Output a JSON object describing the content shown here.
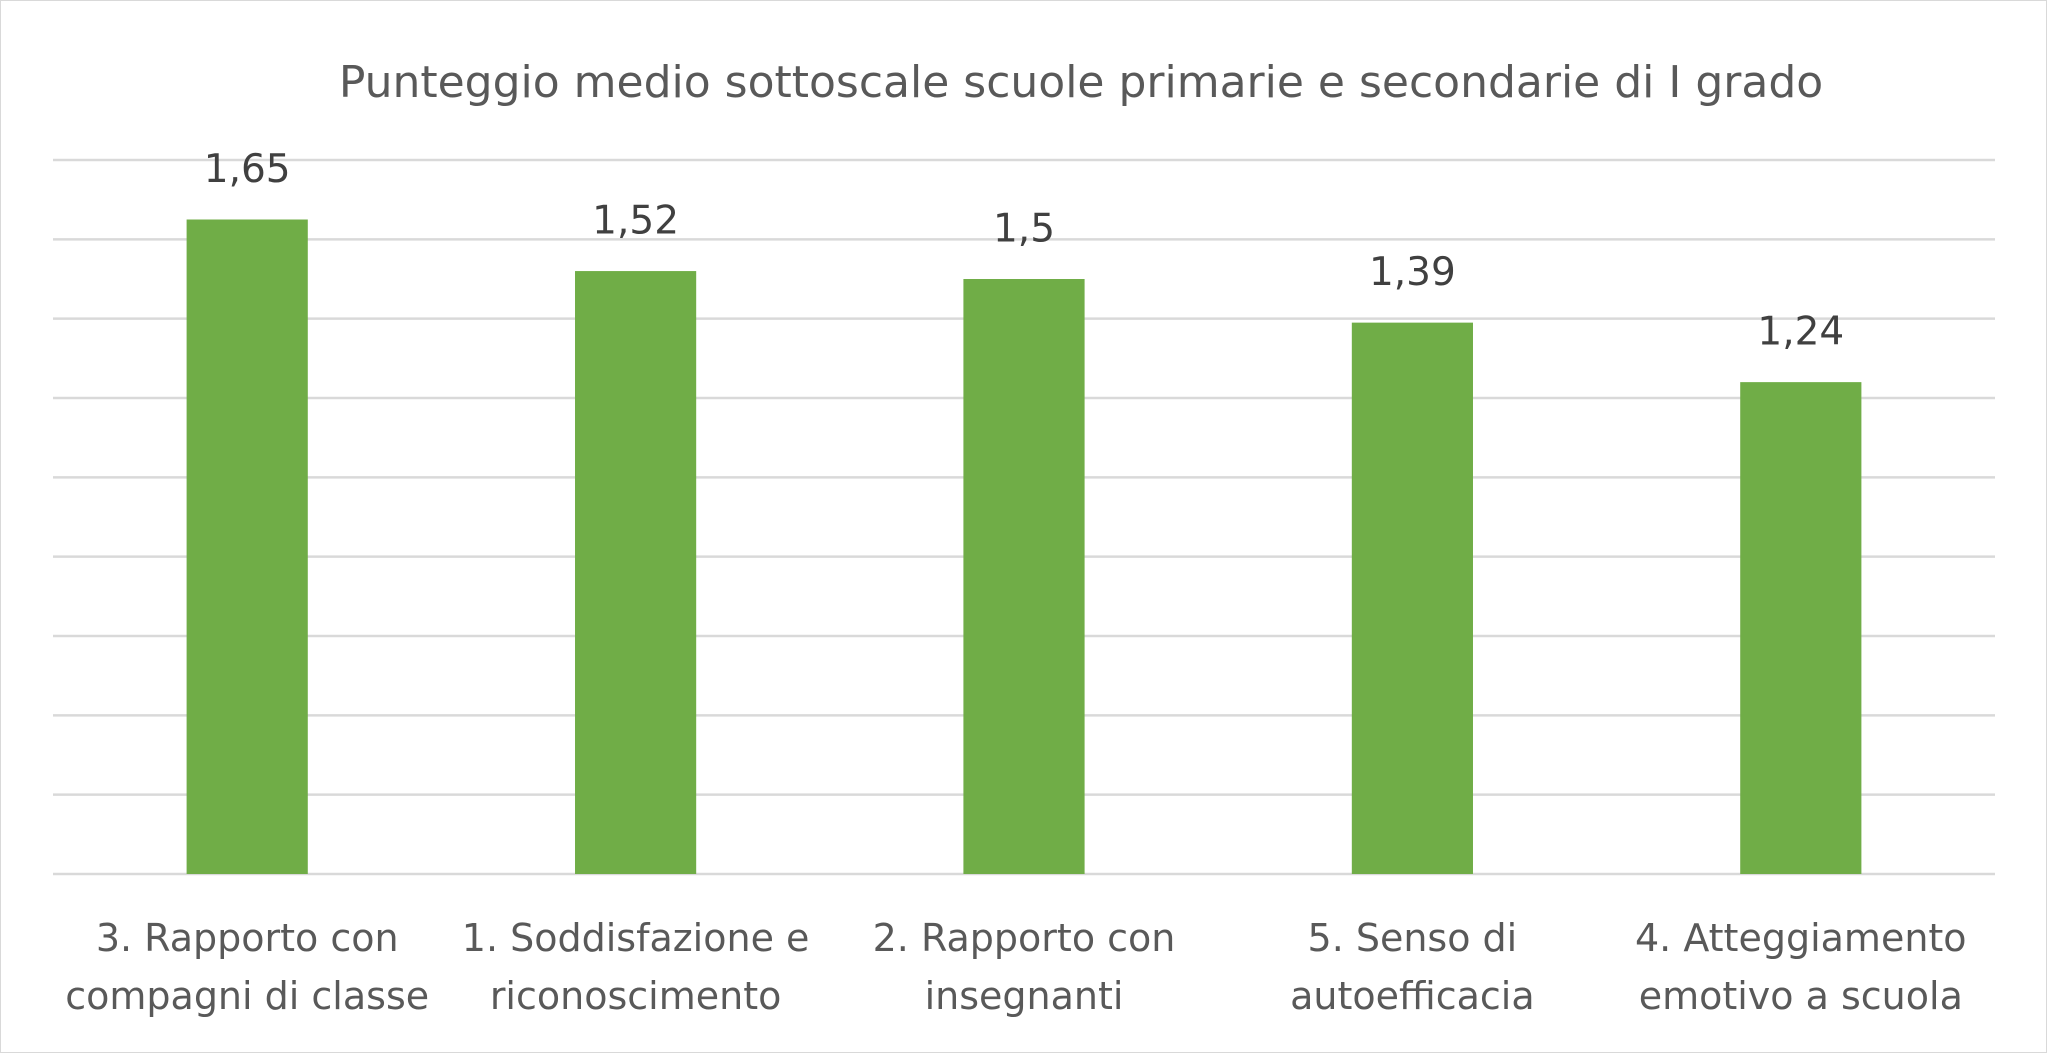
{
  "chart_data": {
    "type": "bar",
    "title": "Punteggio medio sottoscale scuole primarie e secondarie di I grado",
    "categories": [
      "3. Rapporto con compagni di classe",
      "1. Soddisfazione e riconoscimento",
      "2. Rapporto con insegnanti",
      "5. Senso di autoefficacia",
      "4. Atteggiamento emotivo a scuola"
    ],
    "values": [
      1.65,
      1.52,
      1.5,
      1.39,
      1.24
    ],
    "value_labels": [
      "1,65",
      "1,52",
      "1,5",
      "1,39",
      "1,24"
    ],
    "color": "#70ad47",
    "ylim": [
      0,
      1.8
    ],
    "yticks": [
      0,
      0.2,
      0.4,
      0.6,
      0.8,
      1,
      1.2,
      1.4,
      1.6,
      1.8
    ],
    "grid": true
  }
}
